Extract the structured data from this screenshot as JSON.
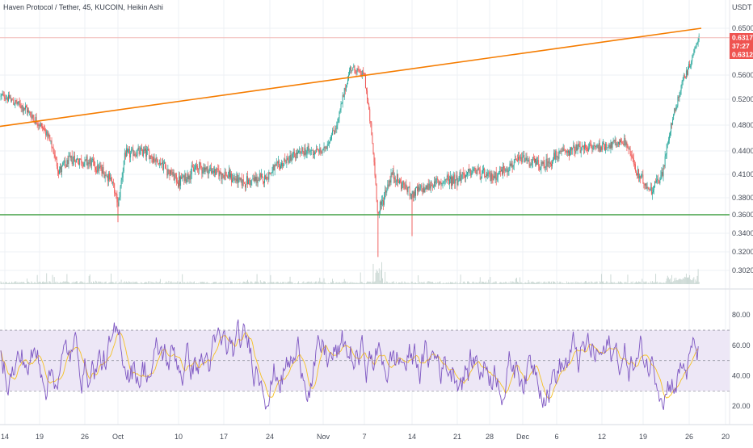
{
  "header": {
    "title": "Haven Protocol / Tether, 45, KUCOIN, Heikin Ashi",
    "currency": "USDT"
  },
  "price_boxes": {
    "last": "0.6317",
    "countdown": "37:27",
    "prev": "0.6312"
  },
  "colors": {
    "up": "#26a69a",
    "down": "#ef5350",
    "trendline": "#f57c00",
    "support": "#43a047",
    "rsi_line": "#7e57c2",
    "rsi_ma": "#f5c023",
    "rsi_band": "#ede7f6",
    "grid": "#eef0f4",
    "volume": "#c8d6d2"
  },
  "chart_data": [
    {
      "type": "candlestick",
      "chart_style": "Heikin Ashi",
      "y_ticks": [
        "0.6500",
        "0.5600",
        "0.5200",
        "0.4800",
        "0.4400",
        "0.4100",
        "0.3800",
        "0.3600",
        "0.3400",
        "0.3200",
        "0.3020"
      ],
      "x_ticks": [
        "14",
        "19",
        "26",
        "Oct",
        "10",
        "17",
        "24",
        "Nov",
        "7",
        "14",
        "21",
        "28",
        "Dec",
        "6",
        "12",
        "19",
        "26",
        "20"
      ],
      "grid": true,
      "price_at_trendline_start": 0.478,
      "price_at_trendline_end": 0.65,
      "support_level": 0.36,
      "red_reference_line": 0.6317,
      "price_path": [
        {
          "d": "Sep 14",
          "p": 0.525
        },
        {
          "d": "Sep 17",
          "p": 0.505
        },
        {
          "d": "Sep 20",
          "p": 0.47
        },
        {
          "d": "Sep 22",
          "p": 0.415
        },
        {
          "d": "Sep 24",
          "p": 0.43
        },
        {
          "d": "Sep 27",
          "p": 0.425
        },
        {
          "d": "Sep 30",
          "p": 0.405
        },
        {
          "d": "Oct 1",
          "p": 0.37
        },
        {
          "d": "Oct 2",
          "p": 0.435
        },
        {
          "d": "Oct 5",
          "p": 0.44
        },
        {
          "d": "Oct 8",
          "p": 0.42
        },
        {
          "d": "Oct 10",
          "p": 0.4
        },
        {
          "d": "Oct 13",
          "p": 0.42
        },
        {
          "d": "Oct 17",
          "p": 0.41
        },
        {
          "d": "Oct 20",
          "p": 0.4
        },
        {
          "d": "Oct 23",
          "p": 0.405
        },
        {
          "d": "Oct 26",
          "p": 0.425
        },
        {
          "d": "Oct 29",
          "p": 0.44
        },
        {
          "d": "Nov 1",
          "p": 0.44
        },
        {
          "d": "Nov 3",
          "p": 0.48
        },
        {
          "d": "Nov 5",
          "p": 0.575
        },
        {
          "d": "Nov 7",
          "p": 0.56
        },
        {
          "d": "Nov 8",
          "p": 0.47
        },
        {
          "d": "Nov 9",
          "p": 0.36
        },
        {
          "d": "Nov 11",
          "p": 0.41
        },
        {
          "d": "Nov 14",
          "p": 0.385
        },
        {
          "d": "Nov 18",
          "p": 0.4
        },
        {
          "d": "Nov 21",
          "p": 0.405
        },
        {
          "d": "Nov 25",
          "p": 0.415
        },
        {
          "d": "Nov 28",
          "p": 0.405
        },
        {
          "d": "Dec 1",
          "p": 0.43
        },
        {
          "d": "Dec 4",
          "p": 0.42
        },
        {
          "d": "Dec 7",
          "p": 0.44
        },
        {
          "d": "Dec 10",
          "p": 0.445
        },
        {
          "d": "Dec 14",
          "p": 0.45
        },
        {
          "d": "Dec 16",
          "p": 0.455
        },
        {
          "d": "Dec 18",
          "p": 0.41
        },
        {
          "d": "Dec 20",
          "p": 0.39
        },
        {
          "d": "Dec 22",
          "p": 0.41
        },
        {
          "d": "Dec 23",
          "p": 0.47
        },
        {
          "d": "Dec 25",
          "p": 0.55
        },
        {
          "d": "Dec 26",
          "p": 0.575
        },
        {
          "d": "Dec 28",
          "p": 0.632
        }
      ]
    },
    {
      "type": "line",
      "indicator": "RSI",
      "y_ticks": [
        "80.00",
        "60.00",
        "40.00",
        "20.00"
      ],
      "ylim": [
        10,
        95
      ],
      "band_upper": 70,
      "band_middle": 50,
      "band_lower": 30
    }
  ]
}
